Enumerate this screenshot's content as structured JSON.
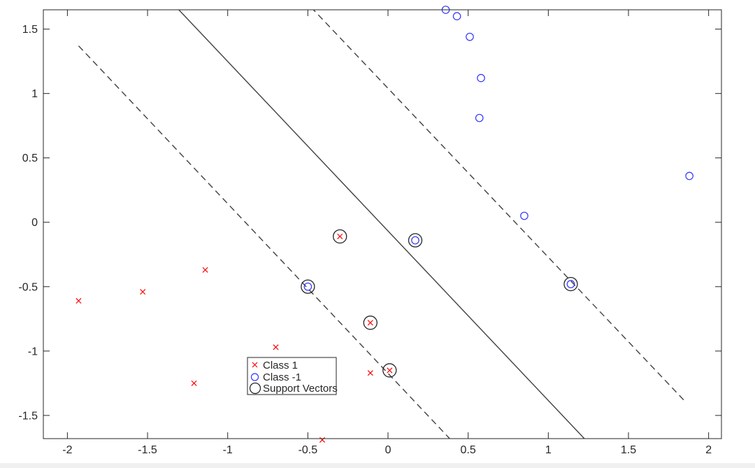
{
  "chart_data": {
    "type": "scatter",
    "title": "",
    "xlabel": "",
    "ylabel": "",
    "xlim": [
      -2.15,
      2.08
    ],
    "ylim": [
      -1.68,
      1.65
    ],
    "x_ticks": [
      -2,
      -1.5,
      -1,
      -0.5,
      0,
      0.5,
      1,
      1.5,
      2
    ],
    "x_tick_labels": [
      "-2",
      "-1.5",
      "-1",
      "-0.5",
      "0",
      "0.5",
      "1",
      "1.5",
      "2"
    ],
    "y_ticks": [
      1.5,
      1,
      0.5,
      0,
      -0.5,
      -1,
      -1.5
    ],
    "y_tick_labels": [
      "1.5",
      "1",
      "0.5",
      "0",
      "-0.5",
      "-1",
      "-1.5"
    ],
    "grid": false,
    "legend_position": "bottom-center",
    "series": [
      {
        "name": "Class 1",
        "marker": "x",
        "color": "#ff0000",
        "points": [
          [
            -1.93,
            -0.61
          ],
          [
            -1.53,
            -0.54
          ],
          [
            -1.14,
            -0.37
          ],
          [
            -1.21,
            -1.25
          ],
          [
            -0.7,
            -0.97
          ],
          [
            -0.41,
            -1.69
          ],
          [
            -0.11,
            -1.17
          ],
          [
            -0.3,
            -0.11
          ],
          [
            -0.11,
            -0.78
          ],
          [
            0.01,
            -1.15
          ]
        ]
      },
      {
        "name": "Class -1",
        "marker": "o",
        "color": "#3333ff",
        "points": [
          [
            0.36,
            1.65
          ],
          [
            0.43,
            1.6
          ],
          [
            0.51,
            1.44
          ],
          [
            0.58,
            1.12
          ],
          [
            0.57,
            0.81
          ],
          [
            0.85,
            0.05
          ],
          [
            1.88,
            0.36
          ],
          [
            0.17,
            -0.14
          ],
          [
            -0.5,
            -0.5
          ],
          [
            1.14,
            -0.48
          ]
        ]
      },
      {
        "name": "Support Vectors",
        "marker": "circle",
        "color": "#262626",
        "points": [
          [
            -0.3,
            -0.11
          ],
          [
            0.17,
            -0.14
          ],
          [
            -0.5,
            -0.5
          ],
          [
            1.14,
            -0.48
          ],
          [
            -0.11,
            -0.78
          ],
          [
            0.01,
            -1.15
          ]
        ]
      }
    ],
    "lines": [
      {
        "style": "solid",
        "color": "#404040",
        "points": [
          [
            -1.32,
            1.67
          ],
          [
            1.24,
            -1.7
          ]
        ]
      },
      {
        "style": "dashed",
        "color": "#404040",
        "points": [
          [
            -1.93,
            1.37
          ],
          [
            0.4,
            -1.7
          ]
        ]
      },
      {
        "style": "dashed",
        "color": "#404040",
        "points": [
          [
            -0.48,
            1.67
          ],
          [
            1.86,
            -1.4
          ]
        ]
      }
    ]
  }
}
